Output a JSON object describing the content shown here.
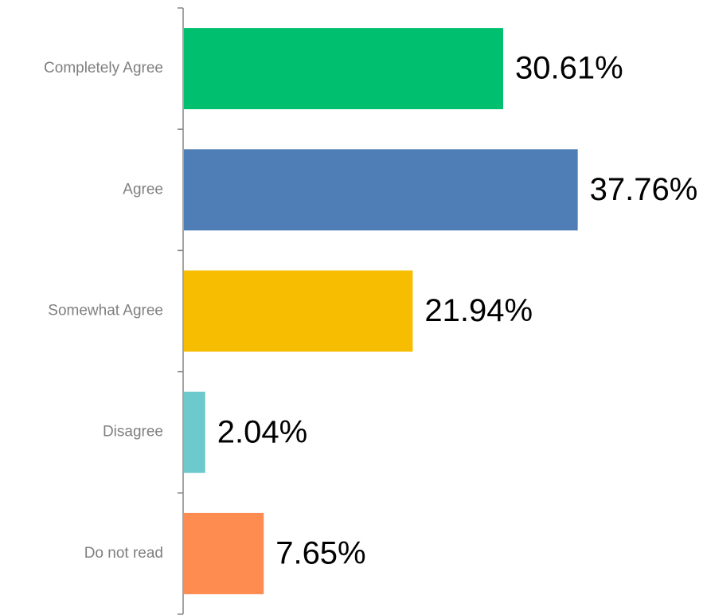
{
  "chart_data": {
    "type": "bar",
    "orientation": "horizontal",
    "categories": [
      "Completely Agree",
      "Agree",
      "Somewhat Agree",
      "Disagree",
      "Do not read"
    ],
    "values": [
      30.61,
      37.76,
      21.94,
      2.04,
      7.65
    ],
    "value_labels": [
      "30.61%",
      "37.76%",
      "21.94%",
      "2.04%",
      "7.65%"
    ],
    "colors": [
      "#00c070",
      "#4f7db5",
      "#f7bd00",
      "#6ccacc",
      "#fe8b50"
    ]
  }
}
